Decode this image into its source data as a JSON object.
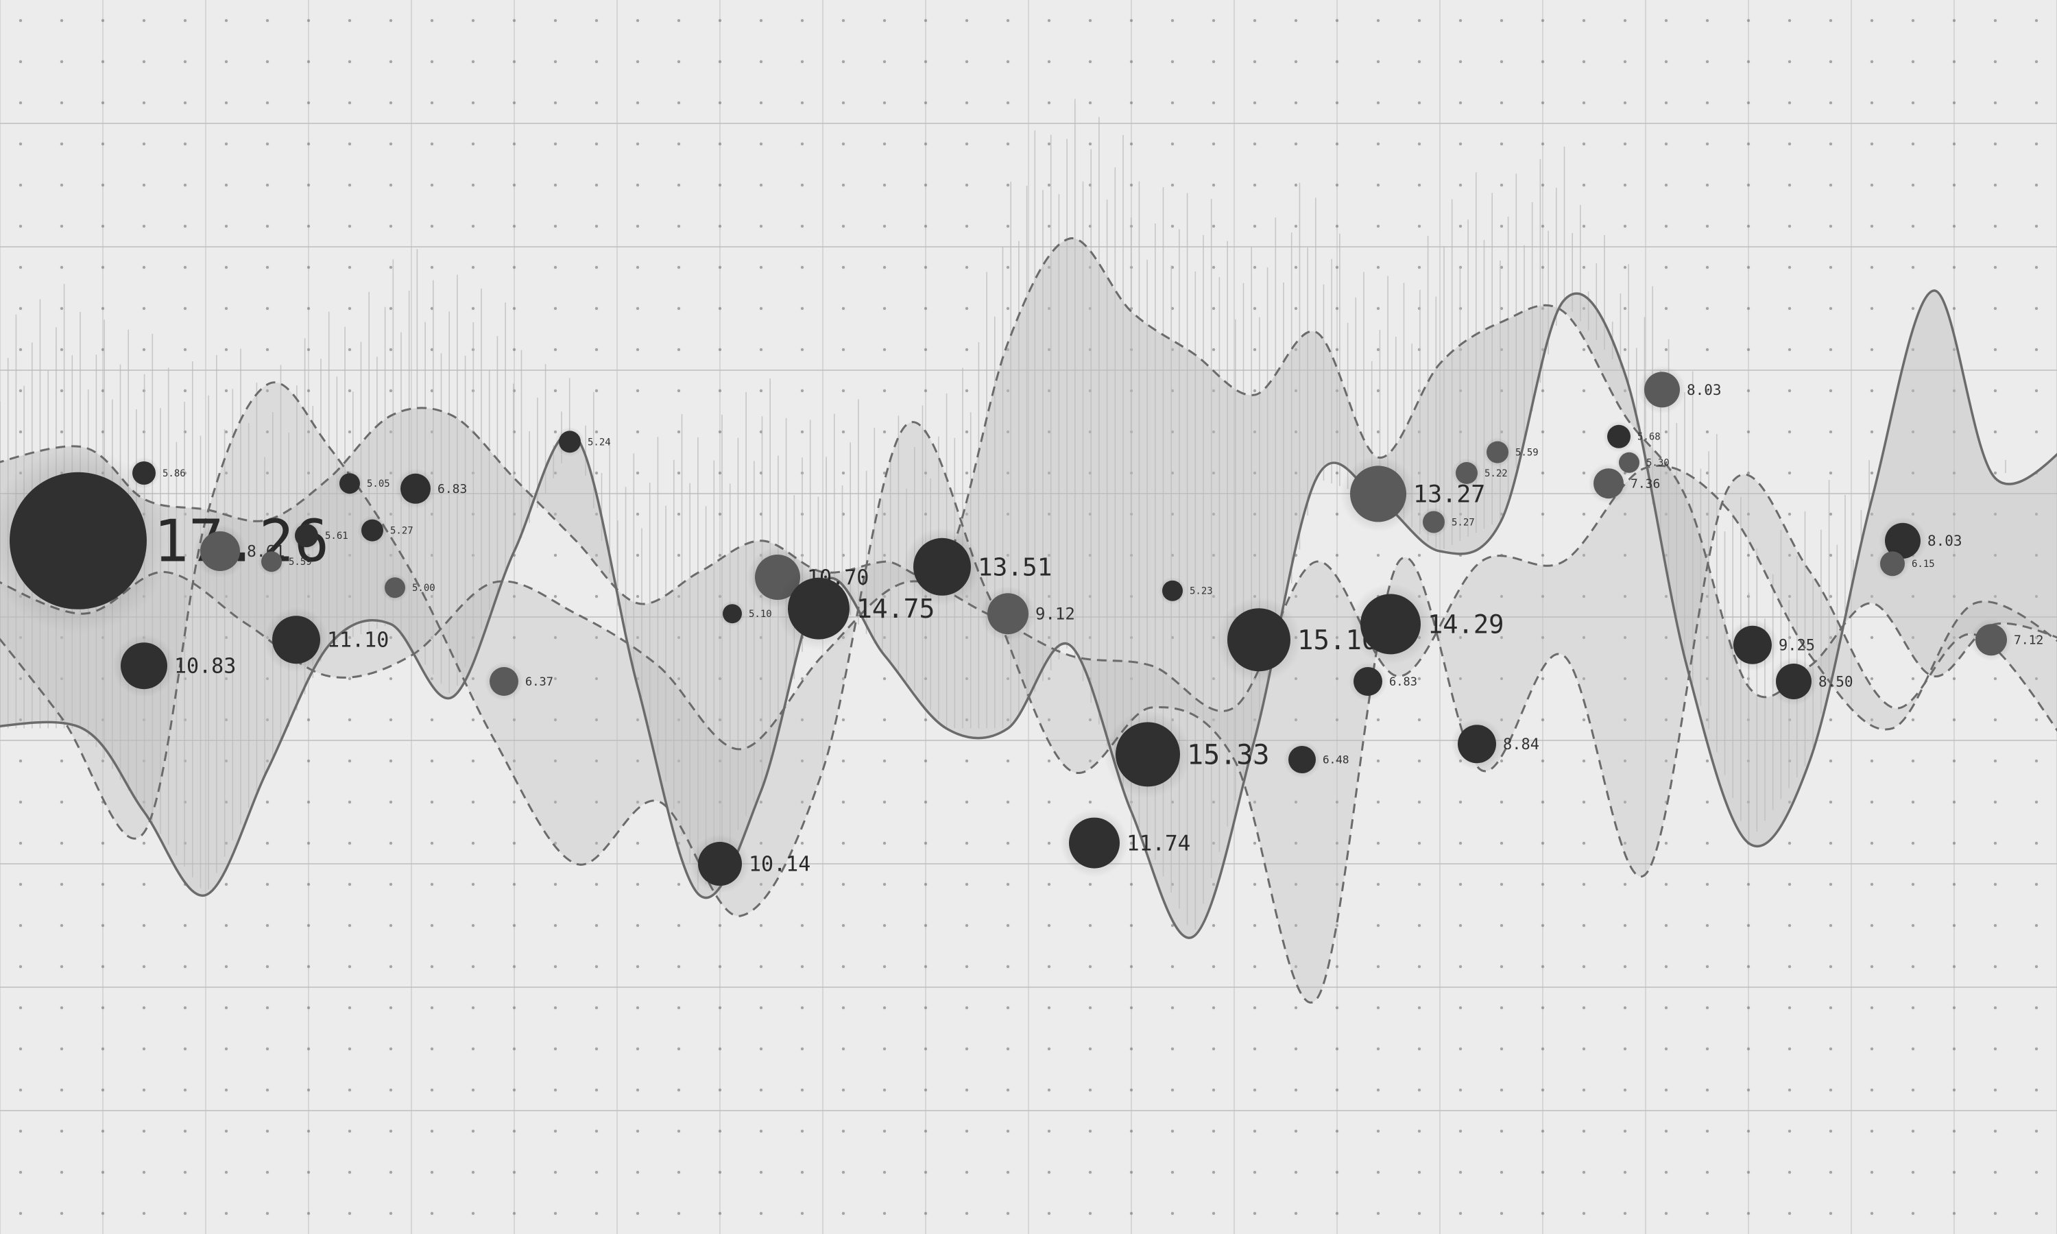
{
  "chart_data": {
    "type": "scatter",
    "title": "",
    "xlabel": "",
    "ylabel": "",
    "xlim": [
      0,
      100
    ],
    "ylim": [
      0,
      100
    ],
    "grid": true,
    "background": "#ececec",
    "colors": {
      "bubble_dark": "#303030",
      "bubble_mid": "#5a5a5a",
      "band_fill": "#bdbdbd",
      "line": "#6b6b6b",
      "grid": "#cfcfcf",
      "dot": "#6a6a6a"
    },
    "series": [
      {
        "values_x": [
          -1,
          4,
          7,
          10,
          13,
          16,
          19,
          22,
          25,
          28,
          31,
          34,
          37,
          40,
          43,
          46,
          49,
          52,
          55,
          58,
          61,
          64,
          67,
          70,
          73,
          76,
          79,
          82,
          85,
          88,
          91,
          94,
          97,
          101
        ],
        "values_y": [
          38,
          38,
          30,
          22,
          34,
          46,
          48,
          41,
          55,
          66,
          42,
          22,
          32,
          52,
          45,
          38,
          38,
          46,
          30,
          18,
          37,
          62,
          60,
          55,
          58,
          79,
          72,
          44,
          27,
          35,
          60,
          80,
          62,
          66
        ]
      },
      {
        "values_x": [
          -1,
          4,
          7,
          10,
          13,
          16,
          19,
          22,
          25,
          28,
          31,
          34,
          37,
          40,
          43,
          46,
          49,
          52,
          55,
          58,
          61,
          64,
          67,
          70,
          73,
          76,
          79,
          82,
          85,
          88,
          91,
          94,
          97,
          101
        ],
        "values_y": [
          63,
          65,
          60,
          59,
          58,
          62,
          68,
          68,
          62,
          56,
          50,
          53,
          56,
          53,
          54,
          54,
          75,
          85,
          78,
          74,
          70,
          76,
          64,
          73,
          77,
          78,
          68,
          60,
          42,
          44,
          50,
          43,
          48,
          46
        ]
      },
      {
        "values_x": [
          -1,
          3,
          7,
          10,
          13,
          16,
          20,
          24,
          28,
          32,
          36,
          40,
          44,
          48,
          52,
          56,
          60,
          64,
          68,
          72,
          76,
          80,
          84,
          88,
          92,
          96,
          101
        ],
        "values_y": [
          49,
          39,
          28,
          58,
          71,
          65,
          53,
          37,
          25,
          31,
          20,
          34,
          67,
          51,
          34,
          40,
          35,
          12,
          54,
          34,
          45,
          24,
          61,
          53,
          40,
          47,
          35
        ]
      },
      {
        "values_x": [
          -1,
          4,
          8,
          12,
          16,
          20,
          24,
          28,
          32,
          36,
          40,
          44,
          48,
          52,
          56,
          60,
          64,
          68,
          72,
          76,
          80,
          84,
          88,
          92,
          96,
          101
        ],
        "values_y": [
          53,
          49,
          53,
          48,
          43,
          45,
          52,
          49,
          44,
          36,
          45,
          52,
          49,
          45,
          44,
          40,
          54,
          43,
          54,
          54,
          63,
          59,
          45,
          38,
          50,
          45
        ]
      }
    ],
    "points": [
      {
        "label": "17.26",
        "x": 3.8,
        "y": 56,
        "r": 100,
        "big": true
      },
      {
        "label": "10.83",
        "x": 7.0,
        "y": 44,
        "r": 34,
        "big": true
      },
      {
        "label": "11.10",
        "x": 14.4,
        "y": 46.5,
        "r": 35,
        "big": true
      },
      {
        "label": "8.61",
        "x": 10.7,
        "y": 55,
        "r": 29,
        "big": false,
        "shade": "mid"
      },
      {
        "label": "6.83",
        "x": 20.2,
        "y": 61,
        "r": 22,
        "big": false
      },
      {
        "label": "5.86",
        "x": 7.0,
        "y": 62.5,
        "r": 17,
        "big": false
      },
      {
        "label": "5.24",
        "x": 27.7,
        "y": 65.5,
        "r": 16,
        "big": false
      },
      {
        "label": "6.37",
        "x": 24.5,
        "y": 42.5,
        "r": 21,
        "big": false,
        "shade": "mid"
      },
      {
        "label": "10.14",
        "x": 35.0,
        "y": 25,
        "r": 32,
        "big": true
      },
      {
        "label": "10.70",
        "x": 37.8,
        "y": 52.5,
        "r": 33,
        "big": true,
        "shade": "mid"
      },
      {
        "label": "14.75",
        "x": 39.8,
        "y": 49.5,
        "r": 45,
        "big": true
      },
      {
        "label": "13.51",
        "x": 45.8,
        "y": 53.5,
        "r": 42,
        "big": true
      },
      {
        "label": "9.12",
        "x": 49.0,
        "y": 49,
        "r": 30,
        "big": false,
        "shade": "mid"
      },
      {
        "label": "11.74",
        "x": 53.2,
        "y": 27,
        "r": 37,
        "big": true
      },
      {
        "label": "15.33",
        "x": 55.8,
        "y": 35.5,
        "r": 47,
        "big": true
      },
      {
        "label": "15.10",
        "x": 61.2,
        "y": 46.5,
        "r": 46,
        "big": true
      },
      {
        "label": "13.27",
        "x": 67.0,
        "y": 60.5,
        "r": 41,
        "big": true,
        "shade": "mid"
      },
      {
        "label": "14.29",
        "x": 67.6,
        "y": 48,
        "r": 44,
        "big": true
      },
      {
        "label": "8.84",
        "x": 71.8,
        "y": 36.5,
        "r": 28,
        "big": false
      },
      {
        "label": "8.03",
        "x": 80.8,
        "y": 70.5,
        "r": 26,
        "big": false,
        "shade": "mid"
      },
      {
        "label": "9.25",
        "x": 85.2,
        "y": 46,
        "r": 28,
        "big": false
      },
      {
        "label": "8.50",
        "x": 87.2,
        "y": 42.5,
        "r": 26,
        "big": false
      },
      {
        "label": "8.03",
        "x": 92.5,
        "y": 56,
        "r": 26,
        "big": false
      },
      {
        "label": "7.12",
        "x": 96.8,
        "y": 46.5,
        "r": 23,
        "big": false,
        "shade": "mid"
      },
      {
        "label": "6.48",
        "x": 63.3,
        "y": 35,
        "r": 20,
        "big": false
      },
      {
        "label": "6.83",
        "x": 66.5,
        "y": 42.5,
        "r": 21,
        "big": false
      },
      {
        "label": "7.36",
        "x": 78.2,
        "y": 61.5,
        "r": 22,
        "big": false,
        "shade": "mid"
      },
      {
        "label": "5.68",
        "x": 78.7,
        "y": 66,
        "r": 17,
        "big": false
      },
      {
        "label": "5.22",
        "x": 71.3,
        "y": 62.5,
        "r": 16,
        "big": false,
        "shade": "mid"
      },
      {
        "label": "5.59",
        "x": 72.8,
        "y": 64.5,
        "r": 16,
        "big": false,
        "shade": "mid"
      },
      {
        "label": "5.27",
        "x": 69.7,
        "y": 57.8,
        "r": 16,
        "big": false,
        "shade": "mid"
      },
      {
        "label": "5.27",
        "x": 18.1,
        "y": 57,
        "r": 16,
        "big": false
      },
      {
        "label": "5.61",
        "x": 14.9,
        "y": 56.5,
        "r": 17,
        "big": false
      },
      {
        "label": "5.05",
        "x": 17.0,
        "y": 61.5,
        "r": 15,
        "big": false
      },
      {
        "label": "5.00",
        "x": 19.2,
        "y": 51.5,
        "r": 15,
        "big": false,
        "shade": "mid"
      },
      {
        "label": "5.59",
        "x": 13.2,
        "y": 54,
        "r": 15,
        "big": false,
        "shade": "mid"
      },
      {
        "label": "6.15",
        "x": 92.0,
        "y": 53.8,
        "r": 18,
        "big": false,
        "shade": "mid"
      },
      {
        "label": "5.23",
        "x": 57.0,
        "y": 51.2,
        "r": 15,
        "big": false
      },
      {
        "label": "5.10",
        "x": 35.6,
        "y": 49,
        "r": 14,
        "big": false
      },
      {
        "label": "5.30",
        "x": 79.2,
        "y": 63.5,
        "r": 15,
        "big": false,
        "shade": "mid"
      }
    ]
  }
}
